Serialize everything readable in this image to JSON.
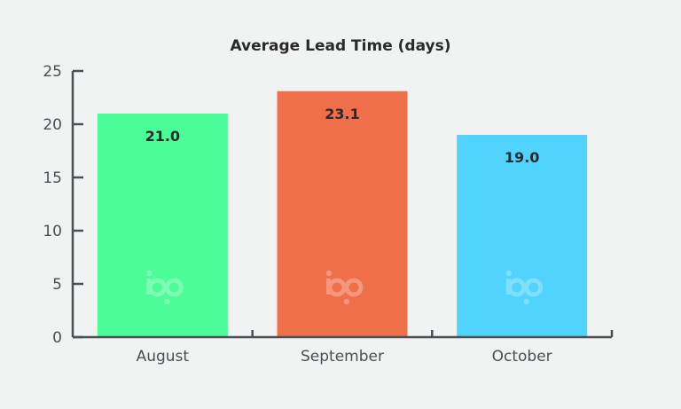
{
  "chart_data": {
    "type": "bar",
    "title": "Average Lead Time (days)",
    "xlabel": "",
    "ylabel": "",
    "categories": [
      "August",
      "September",
      "October"
    ],
    "values": [
      21.0,
      23.1,
      19.0
    ],
    "value_labels": [
      "21.0",
      "23.1",
      "19.0"
    ],
    "ylim": [
      0,
      25
    ],
    "yticks": [
      0,
      5,
      10,
      15,
      20,
      25
    ],
    "grid": false,
    "legend": "none",
    "bar_colors": [
      "#4cfc98",
      "#ef6f4b",
      "#50d3fd"
    ],
    "watermark": "bp"
  },
  "colors": {
    "background": "#f1f3f3",
    "axis": "#4a4f54",
    "text": "#2a2a2a"
  }
}
